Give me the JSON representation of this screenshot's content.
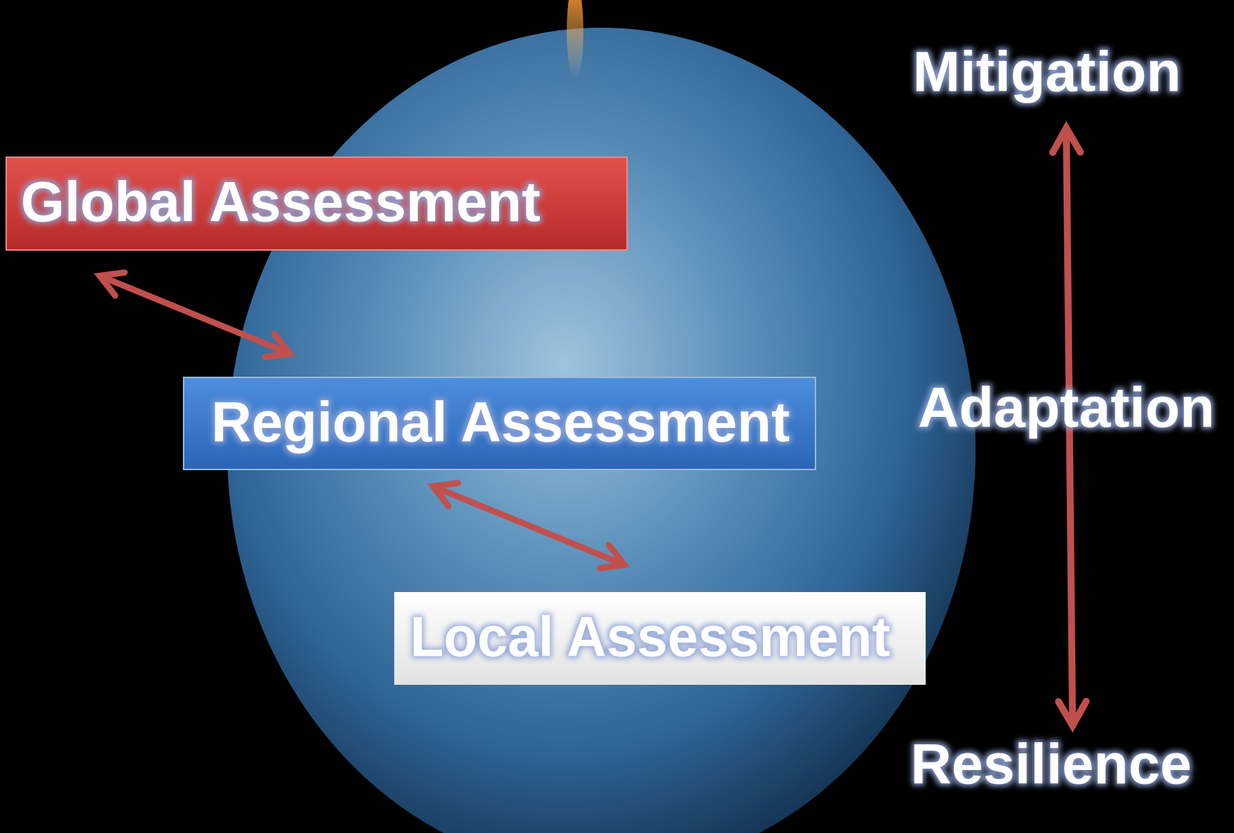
{
  "boxes": [
    {
      "label": "Global Assessment"
    },
    {
      "label": "Regional Assessment"
    },
    {
      "label": "Local Assessment"
    }
  ],
  "scale": {
    "top": "Mitigation",
    "middle": "Adaptation",
    "bottom": "Resilience"
  }
}
